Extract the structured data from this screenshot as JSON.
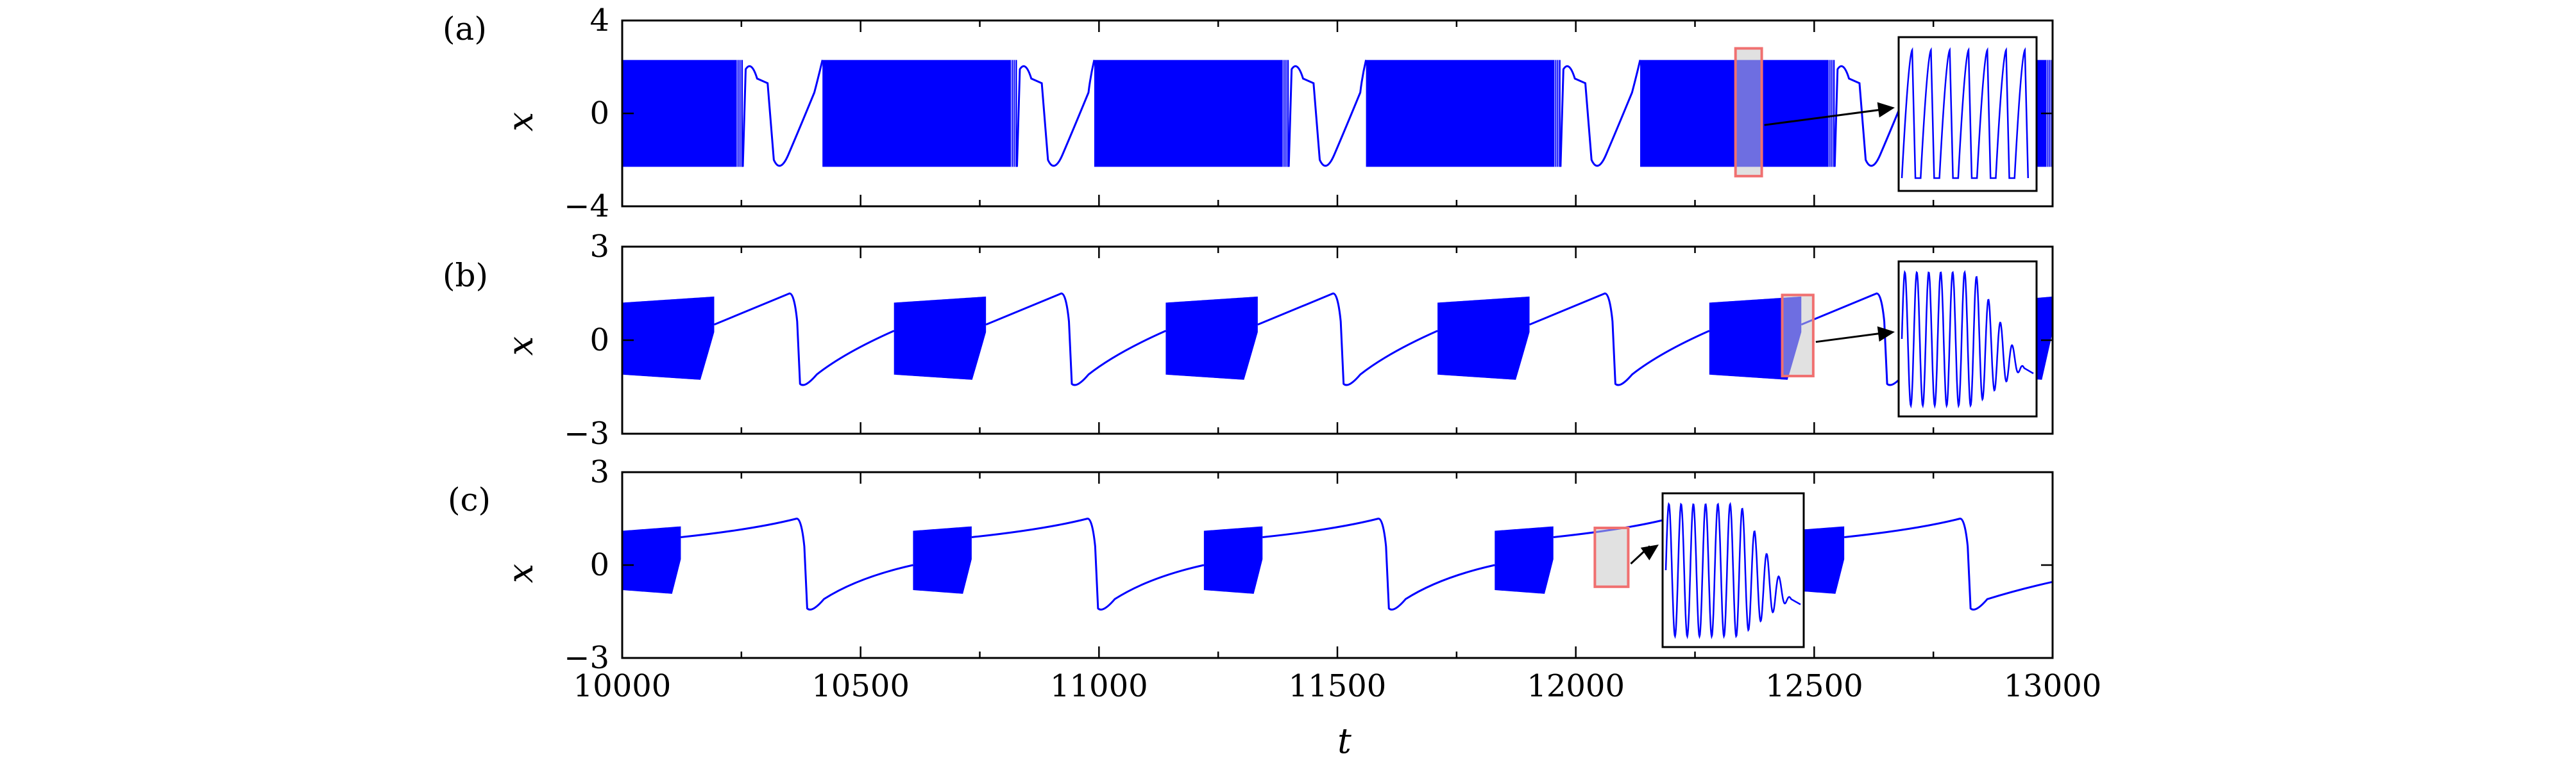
{
  "chart_data": [
    {
      "type": "line",
      "panel_label": "(a)",
      "ylabel": "x",
      "xlabel": "",
      "xlim": [
        10000,
        13000
      ],
      "ylim": [
        -4,
        4
      ],
      "y_ticks": [
        -4,
        0,
        4
      ],
      "y_tick_labels": [
        "−4",
        "0",
        "4"
      ],
      "x_tick_labels_visible": false,
      "series": [
        {
          "color": "#0000ff",
          "burst_amplitude": 2.3,
          "segments": [
            {
              "kind": "burst",
              "from": 10000,
              "to": 10253
            },
            {
              "kind": "quiescent",
              "from": 10253,
              "to": 10420,
              "level_low": -2.3
            },
            {
              "kind": "burst",
              "from": 10420,
              "to": 10828
            },
            {
              "kind": "quiescent",
              "from": 10828,
              "to": 10990,
              "level_low": -2.3
            },
            {
              "kind": "burst",
              "from": 10990,
              "to": 11398
            },
            {
              "kind": "quiescent",
              "from": 11398,
              "to": 11560,
              "level_low": -2.3
            },
            {
              "kind": "burst",
              "from": 11560,
              "to": 11968
            },
            {
              "kind": "quiescent",
              "from": 11968,
              "to": 12135,
              "level_low": -2.3
            },
            {
              "kind": "burst",
              "from": 12135,
              "to": 12543
            },
            {
              "kind": "quiescent",
              "from": 12543,
              "to": 12700,
              "level_low": -2.3
            },
            {
              "kind": "burst",
              "from": 12700,
              "to": 13000
            }
          ]
        }
      ],
      "highlight": {
        "t_from": 12335,
        "t_to": 12390,
        "x_from": -2.7,
        "x_to": 2.8
      },
      "inset": {
        "type": "line",
        "shape": "spikes",
        "cycles": 7
      }
    },
    {
      "type": "line",
      "panel_label": "(b)",
      "ylabel": "x",
      "xlabel": "",
      "xlim": [
        10000,
        13000
      ],
      "ylim": [
        -3,
        3
      ],
      "y_ticks": [
        -3,
        0,
        3
      ],
      "y_tick_labels": [
        "−3",
        "0",
        "3"
      ],
      "x_tick_labels_visible": false,
      "series": [
        {
          "color": "#0000ff",
          "burst_amplitude": 1.3,
          "period": 570,
          "bursts": [
            {
              "from": 10000,
              "to": 10193
            },
            {
              "from": 10570,
              "to": 10763
            },
            {
              "from": 11140,
              "to": 11333
            },
            {
              "from": 11710,
              "to": 11903
            },
            {
              "from": 12280,
              "to": 12473
            },
            {
              "from": 12850,
              "to": 13000
            }
          ],
          "spike_peak": 1.5,
          "trough": -1.5
        }
      ],
      "highlight": {
        "t_from": 12433,
        "t_to": 12498,
        "x_from": -1.15,
        "x_to": 1.45
      },
      "inset": {
        "type": "line",
        "shape": "decaying-oscillation"
      }
    },
    {
      "type": "line",
      "panel_label": "(c)",
      "ylabel": "x",
      "xlabel": "t",
      "xlim": [
        10000,
        13000
      ],
      "ylim": [
        -3,
        3
      ],
      "y_ticks": [
        -3,
        0,
        3
      ],
      "y_tick_labels": [
        "−3",
        "0",
        "3"
      ],
      "x_ticks": [
        10000,
        10500,
        11000,
        11500,
        12000,
        12500,
        13000
      ],
      "x_tick_labels": [
        "10000",
        "10500",
        "11000",
        "11500",
        "12000",
        "12500",
        "13000"
      ],
      "series": [
        {
          "color": "#0000ff",
          "period": 610,
          "bursts": [
            {
              "from": 10000,
              "to": 10123
            },
            {
              "from": 10610,
              "to": 10733
            },
            {
              "from": 11220,
              "to": 11343
            },
            {
              "from": 11830,
              "to": 11953
            },
            {
              "from": 12440,
              "to": 12563
            }
          ],
          "burst_amplitude": 0.95,
          "spike_peak": 1.5,
          "trough": -1.5
        }
      ],
      "highlight": {
        "t_from": 12040,
        "t_to": 12110,
        "x_from": -0.7,
        "x_to": 1.2
      },
      "inset": {
        "type": "line",
        "shape": "decaying-oscillation"
      }
    }
  ]
}
